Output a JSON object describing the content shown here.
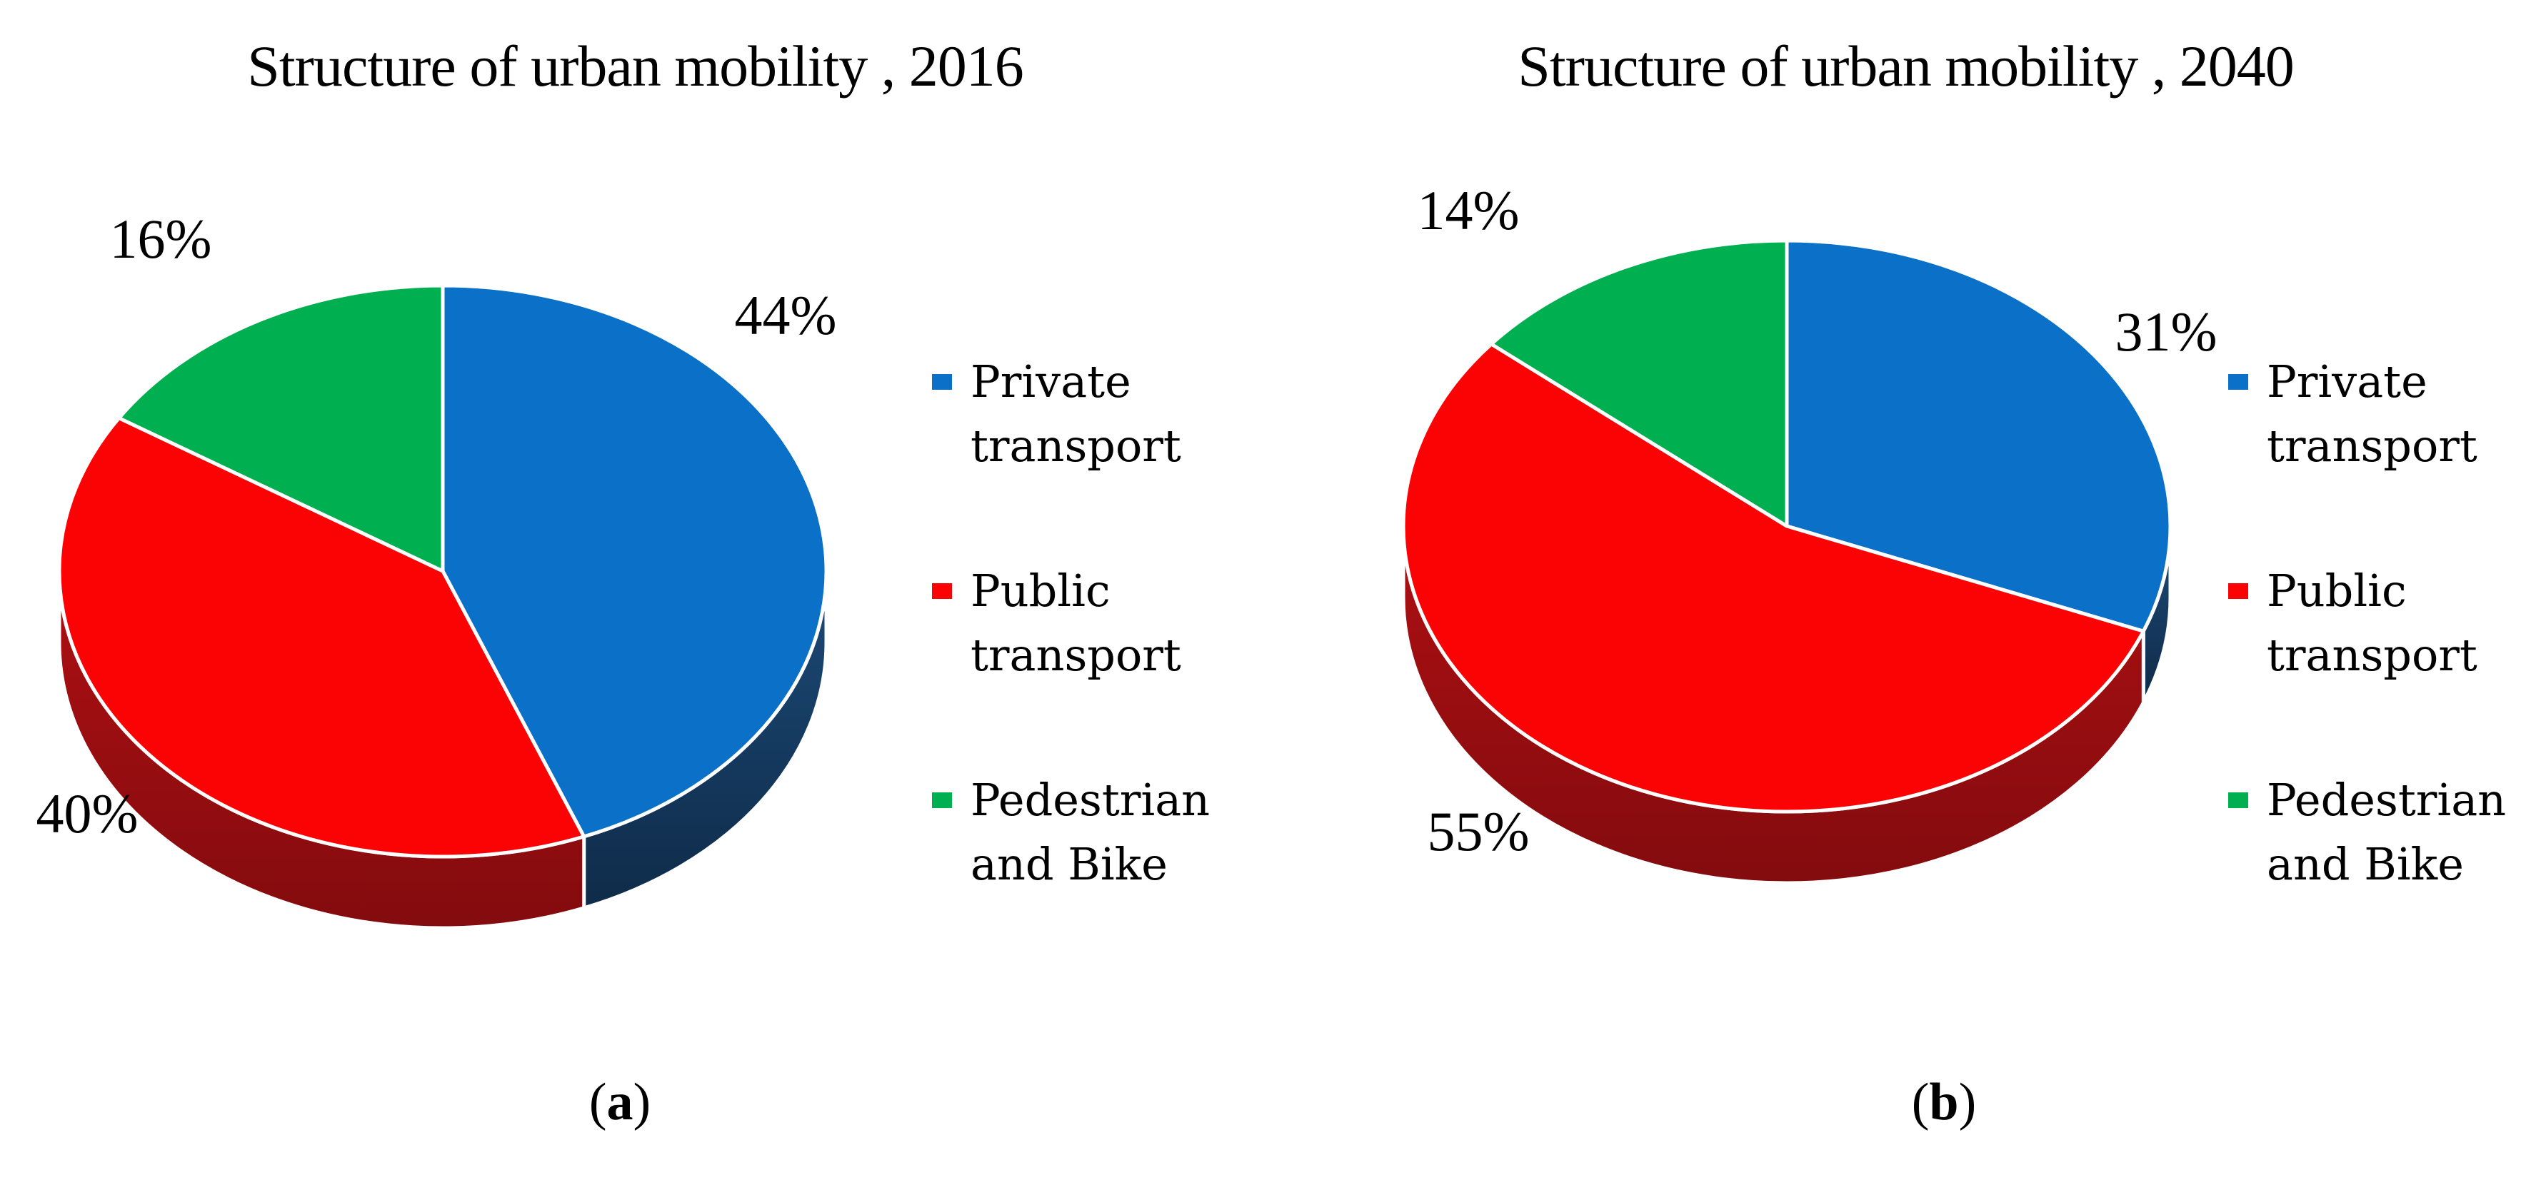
{
  "figure": {
    "background": "#FFFFFF",
    "panels": [
      {
        "caption": {
          "open": "(",
          "letter": "a",
          "close": ")"
        },
        "legend": [
          {
            "line1": "Private",
            "line2": "transport"
          },
          {
            "line1": "Public",
            "line2": "transport"
          },
          {
            "line1": "Pedestrian",
            "line2": "and Bike"
          }
        ]
      },
      {
        "caption": {
          "open": "(",
          "letter": "b",
          "close": ")"
        },
        "legend": [
          {
            "line1": "Private",
            "line2": "transport"
          },
          {
            "line1": "Public",
            "line2": "transport"
          },
          {
            "line1": "Pedestrian",
            "line2": "and Bike"
          }
        ]
      }
    ]
  },
  "chart_data": [
    {
      "type": "pie",
      "style": "3d",
      "title": "Structure of urban mobility , 2016",
      "unit": "%",
      "start_angle_deg_from_12_oclock": 0,
      "direction": "clockwise",
      "legend_position": "right",
      "categories": [
        "Private transport",
        "Public transport",
        "Pedestrian and Bike"
      ],
      "values": [
        44,
        40,
        16
      ],
      "series": [
        {
          "name": "private-transport",
          "label": "Private transport",
          "value": 44,
          "data_label": "44%",
          "color": "#0B70C7",
          "side_gradient": [
            "#1C4A77",
            "#0F2B49"
          ]
        },
        {
          "name": "public-transport",
          "label": "Public transport",
          "value": 40,
          "data_label": "40%",
          "color": "#FB0204",
          "side_gradient": [
            "#AE1013",
            "#830B0E"
          ]
        },
        {
          "name": "pedestrian-and-bike",
          "label": "Pedestrian and Bike",
          "value": 16,
          "data_label": "16%",
          "color": "#00B050",
          "side_gradient": [
            "#0B8A3E",
            "#06662E"
          ]
        }
      ]
    },
    {
      "type": "pie",
      "style": "3d",
      "title": "Structure of urban mobility , 2040",
      "unit": "%",
      "start_angle_deg_from_12_oclock": 0,
      "direction": "clockwise",
      "legend_position": "right",
      "categories": [
        "Private transport",
        "Public transport",
        "Pedestrian and Bike"
      ],
      "values": [
        31,
        55,
        14
      ],
      "series": [
        {
          "name": "private-transport",
          "label": "Private transport",
          "value": 31,
          "data_label": "31%",
          "color": "#0B70C7",
          "side_gradient": [
            "#1C4A77",
            "#0F2B49"
          ]
        },
        {
          "name": "public-transport",
          "label": "Public transport",
          "value": 55,
          "data_label": "55%",
          "color": "#FB0204",
          "side_gradient": [
            "#AE1013",
            "#830B0E"
          ]
        },
        {
          "name": "pedestrian-and-bike",
          "label": "Pedestrian and Bike",
          "value": 14,
          "data_label": "14%",
          "color": "#00B050",
          "side_gradient": [
            "#0B8A3E",
            "#06662E"
          ]
        }
      ]
    }
  ]
}
